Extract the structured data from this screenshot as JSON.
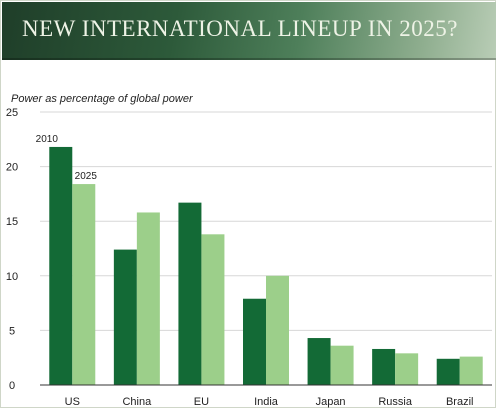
{
  "title": "NEW INTERNATIONAL LINEUP IN 2025?",
  "colors": {
    "series_2010": "#136a36",
    "series_2025": "#9ccf8a",
    "grid": "#d7d7d7"
  },
  "chart_data": {
    "type": "bar",
    "title": "NEW INTERNATIONAL LINEUP IN 2025?",
    "ylabel": "Power as percentage of global power",
    "xlabel": "",
    "ylim": [
      0,
      25
    ],
    "yticks": [
      0,
      5,
      10,
      15,
      20,
      25
    ],
    "grid": true,
    "legend": "inline labels on US bars",
    "categories": [
      "US",
      "China",
      "EU",
      "India",
      "Japan",
      "Russia",
      "Brazil"
    ],
    "series": [
      {
        "name": "2010",
        "values": [
          21.8,
          12.4,
          16.7,
          7.9,
          4.3,
          3.3,
          2.4
        ]
      },
      {
        "name": "2025",
        "values": [
          18.4,
          15.8,
          13.8,
          10.0,
          3.6,
          2.9,
          2.6
        ]
      }
    ]
  }
}
